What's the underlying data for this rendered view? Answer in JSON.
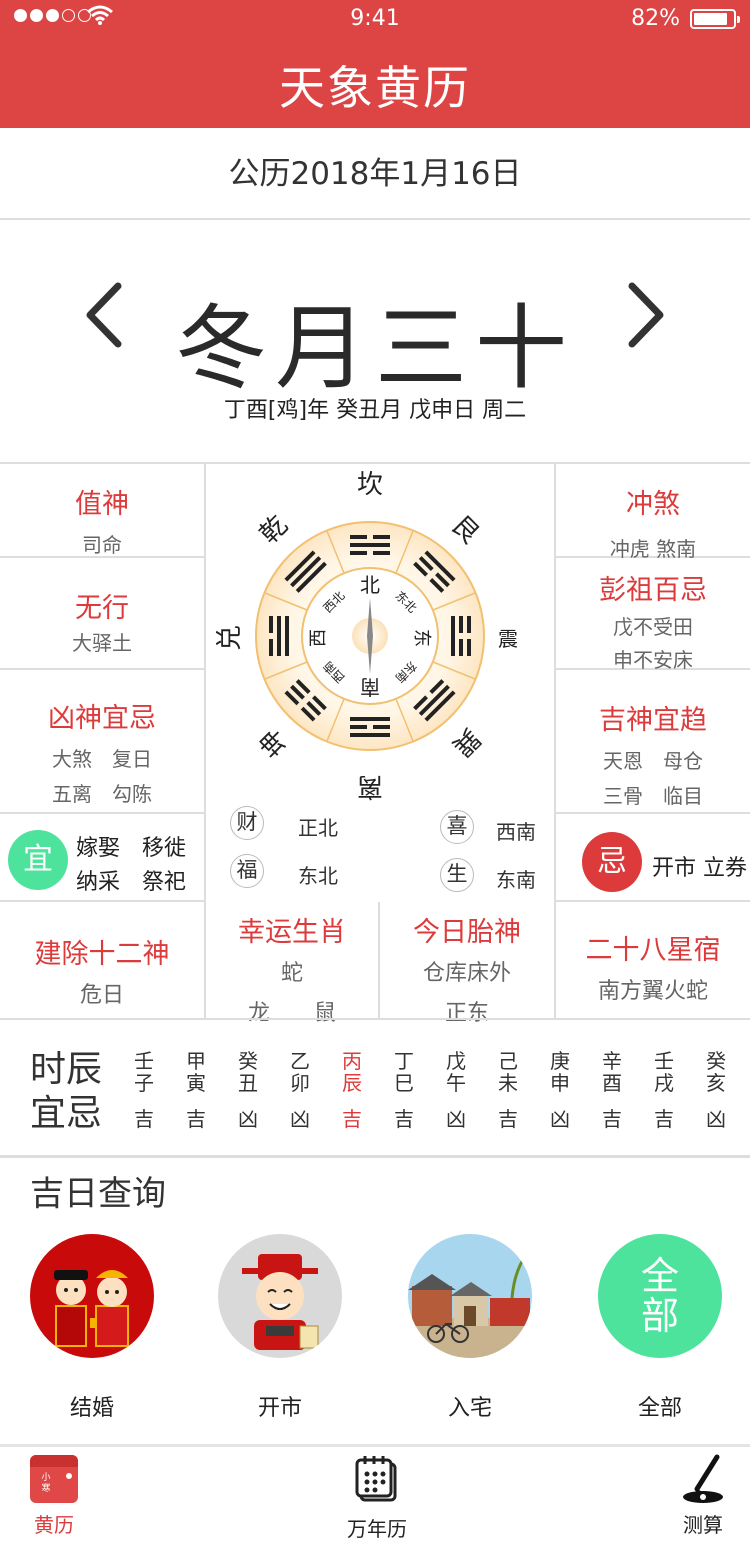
{
  "status_bar": {
    "time": "9:41",
    "battery": "82%",
    "battery_level": 0.82
  },
  "header": {
    "title": "天象黄历"
  },
  "date": {
    "gregorian": "公历2018年1月16日",
    "lunar": "冬月三十",
    "ganzhi": "丁酉[鸡]年 癸丑月 戊申日 周二"
  },
  "left_panel": {
    "zhishen": {
      "title": "值神",
      "value": "司命"
    },
    "wuxing": {
      "title": "无行",
      "value": "大驿土"
    },
    "xiongshen": {
      "title": "凶神宜忌",
      "line1": "大煞　复日",
      "line2": "五离　勾陈"
    },
    "yi": {
      "badge": "宜",
      "line1": "嫁娶　移徙",
      "line2": "纳采　祭祀"
    }
  },
  "right_panel": {
    "chongsha": {
      "title": "冲煞",
      "value": "冲虎 煞南"
    },
    "pengzu": {
      "title": "彭祖百忌",
      "line1": "戊不受田",
      "line2": "申不安床"
    },
    "jishen": {
      "title": "吉神宜趋",
      "line1": "天恩　母仓",
      "line2": "三骨　临目"
    },
    "ji": {
      "badge": "忌",
      "text": "开市 立券"
    }
  },
  "compass": {
    "outer": {
      "kan": "坎",
      "gen": "艮",
      "zhen": "震",
      "xun": "巽",
      "li": "离",
      "kun": "坤",
      "dui": "兑",
      "qian": "乾"
    },
    "inner": {
      "n": "北",
      "ne": "东北",
      "e": "东",
      "se": "东南",
      "s": "南",
      "sw": "西南",
      "w": "西",
      "nw": "西北"
    }
  },
  "directions": {
    "cai": {
      "label": "财",
      "dir": "正北"
    },
    "fu": {
      "label": "福",
      "dir": "东北"
    },
    "xi": {
      "label": "喜",
      "dir": "西南"
    },
    "sheng": {
      "label": "生",
      "dir": "东南"
    }
  },
  "info_row": {
    "jianchu": {
      "title": "建除十二神",
      "value": "危日"
    },
    "shengxiao": {
      "title": "幸运生肖",
      "line1": "蛇",
      "line2": "龙　　鼠"
    },
    "taishen": {
      "title": "今日胎神",
      "line1": "仓库床外",
      "line2": "正东"
    },
    "xingxiu": {
      "title": "二十八星宿",
      "value": "南方翼火蛇"
    }
  },
  "hours": {
    "title1": "时辰",
    "title2": "宜忌",
    "items": [
      {
        "gan": "壬",
        "zhi": "子",
        "luck": "吉"
      },
      {
        "gan": "甲",
        "zhi": "寅",
        "luck": "吉"
      },
      {
        "gan": "癸",
        "zhi": "丑",
        "luck": "凶"
      },
      {
        "gan": "乙",
        "zhi": "卯",
        "luck": "凶"
      },
      {
        "gan": "丙",
        "zhi": "辰",
        "luck": "吉"
      },
      {
        "gan": "丁",
        "zhi": "巳",
        "luck": "吉"
      },
      {
        "gan": "戊",
        "zhi": "午",
        "luck": "凶"
      },
      {
        "gan": "己",
        "zhi": "未",
        "luck": "吉"
      },
      {
        "gan": "庚",
        "zhi": "申",
        "luck": "凶"
      },
      {
        "gan": "辛",
        "zhi": "酉",
        "luck": "吉"
      },
      {
        "gan": "壬",
        "zhi": "戌",
        "luck": "吉"
      },
      {
        "gan": "癸",
        "zhi": "亥",
        "luck": "凶"
      }
    ]
  },
  "jiri": {
    "title": "吉日查询",
    "items": [
      {
        "label": "结婚",
        "icon": "wedding-couple-icon"
      },
      {
        "label": "开市",
        "icon": "god-of-wealth-icon"
      },
      {
        "label": "入宅",
        "icon": "house-street-icon"
      },
      {
        "label": "全部",
        "icon": "all-icon",
        "circle_text": "全部"
      }
    ]
  },
  "tabbar": {
    "items": [
      {
        "label": "黄历",
        "icon_text": "小寒",
        "active": true
      },
      {
        "label": "万年历"
      },
      {
        "label": "测算"
      }
    ]
  },
  "colors": {
    "primary_red": "#dd4444",
    "accent_red": "#dd3b3b",
    "green": "#4de39c"
  }
}
